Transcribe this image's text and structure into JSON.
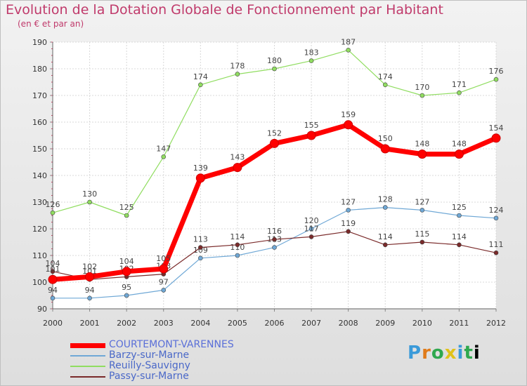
{
  "header": {
    "title": "Evolution de la Dotation Globale de Fonctionnement par Habitant",
    "subtitle": "(en € et par an)"
  },
  "logo": {
    "letters": [
      "P",
      "r",
      "o",
      "x",
      "i",
      "t",
      "i"
    ]
  },
  "chart_data": {
    "type": "line",
    "x": [
      "2000",
      "2001",
      "2002",
      "2003",
      "2004",
      "2005",
      "2006",
      "2007",
      "2008",
      "2009",
      "2010",
      "2011",
      "2012"
    ],
    "ylim": [
      90,
      190
    ],
    "yticks": [
      "90",
      "100",
      "110",
      "120",
      "130",
      "140",
      "150",
      "160",
      "170",
      "180",
      "190"
    ],
    "grid": true,
    "legend_position": "bottom-left",
    "series": [
      {
        "name": "COURTEMONT-VARENNES",
        "color": "#ff0000",
        "values": [
          101,
          102,
          104,
          105,
          139,
          143,
          152,
          155,
          159,
          150,
          148,
          148,
          154
        ]
      },
      {
        "name": "Barzy-sur-Marne",
        "color": "#6fa8d6",
        "values": [
          94,
          94,
          95,
          97,
          109,
          110,
          113,
          120,
          127,
          128,
          127,
          125,
          124
        ]
      },
      {
        "name": "Reuilly-Sauvigny",
        "color": "#90dd60",
        "values": [
          126,
          130,
          125,
          147,
          174,
          178,
          180,
          183,
          187,
          174,
          170,
          171,
          176
        ]
      },
      {
        "name": "Passy-sur-Marne",
        "color": "#7a2a2a",
        "values": [
          104,
          101,
          102,
          103,
          113,
          114,
          116,
          117,
          119,
          114,
          115,
          114,
          111
        ]
      }
    ]
  }
}
